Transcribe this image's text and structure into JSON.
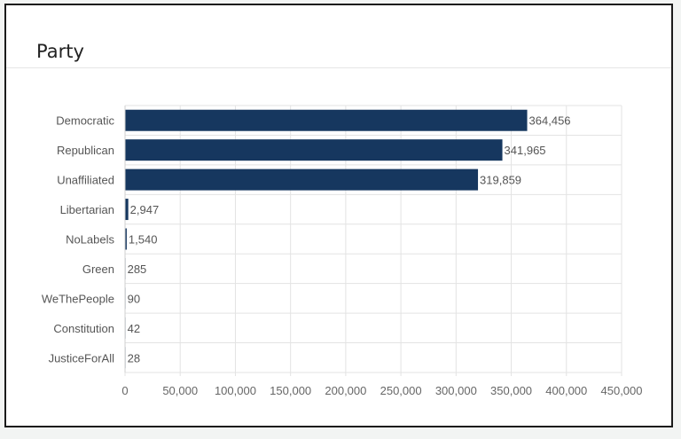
{
  "panel": {
    "title": "Party"
  },
  "chart_data": {
    "type": "bar",
    "orientation": "horizontal",
    "title": "",
    "xlabel": "",
    "ylabel": "",
    "xlim": [
      0,
      450000
    ],
    "grid": true,
    "legend": "none",
    "bar_color": "#16375f",
    "categories": [
      "Democratic",
      "Republican",
      "Unaffiliated",
      "Libertarian",
      "NoLabels",
      "Green",
      "WeThePeople",
      "Constitution",
      "JusticeForAll"
    ],
    "values": [
      364456,
      341965,
      319859,
      2947,
      1540,
      285,
      90,
      42,
      28
    ],
    "value_labels": [
      "364,456",
      "341,965",
      "319,859",
      "2,947",
      "1,540",
      "285",
      "90",
      "42",
      "28"
    ],
    "x_ticks": [
      0,
      50000,
      100000,
      150000,
      200000,
      250000,
      300000,
      350000,
      400000,
      450000
    ],
    "x_tick_labels": [
      "0",
      "50,000",
      "100,000",
      "150,000",
      "200,000",
      "250,000",
      "300,000",
      "350,000",
      "400,000",
      "450,000"
    ]
  }
}
